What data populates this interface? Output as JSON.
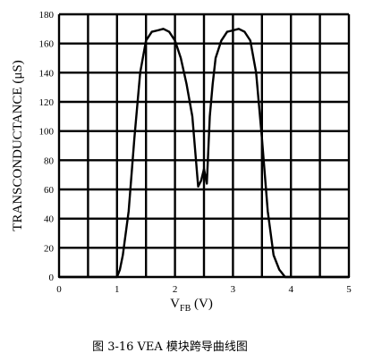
{
  "chart_data": {
    "type": "line",
    "xlabel": {
      "main": "V",
      "subscript": "FB",
      "unit": "(V)"
    },
    "ylabel": "TRANSCONDUCTANCE (μS)",
    "xlim": [
      0,
      5
    ],
    "ylim": [
      0,
      180
    ],
    "x_ticks": [
      "0",
      "1",
      "2",
      "3",
      "4",
      "5"
    ],
    "y_ticks": [
      "0",
      "20",
      "40",
      "60",
      "80",
      "100",
      "120",
      "140",
      "160",
      "180"
    ],
    "grid": true,
    "series": [
      {
        "x": [
          0,
          0.95,
          1.0,
          1.05,
          1.1,
          1.2,
          1.3,
          1.4,
          1.5,
          1.6,
          1.7,
          1.8,
          1.9,
          2.0,
          2.1,
          2.2,
          2.3,
          2.4,
          2.45,
          2.5,
          2.55,
          2.6,
          2.65,
          2.7,
          2.8,
          2.9,
          3.0,
          3.1,
          3.2,
          3.3,
          3.4,
          3.5,
          3.6,
          3.7,
          3.8,
          3.9,
          3.95,
          4.0,
          5.0
        ],
        "y": [
          0,
          0,
          0,
          5,
          15,
          45,
          95,
          140,
          162,
          168,
          169,
          170,
          168,
          162,
          150,
          132,
          110,
          62,
          66,
          74,
          64,
          110,
          132,
          150,
          162,
          168,
          169,
          170,
          168,
          162,
          140,
          95,
          45,
          15,
          5,
          0,
          0,
          0,
          0
        ]
      }
    ],
    "caption": "图 3-16   VEA 模块跨导曲线图"
  }
}
